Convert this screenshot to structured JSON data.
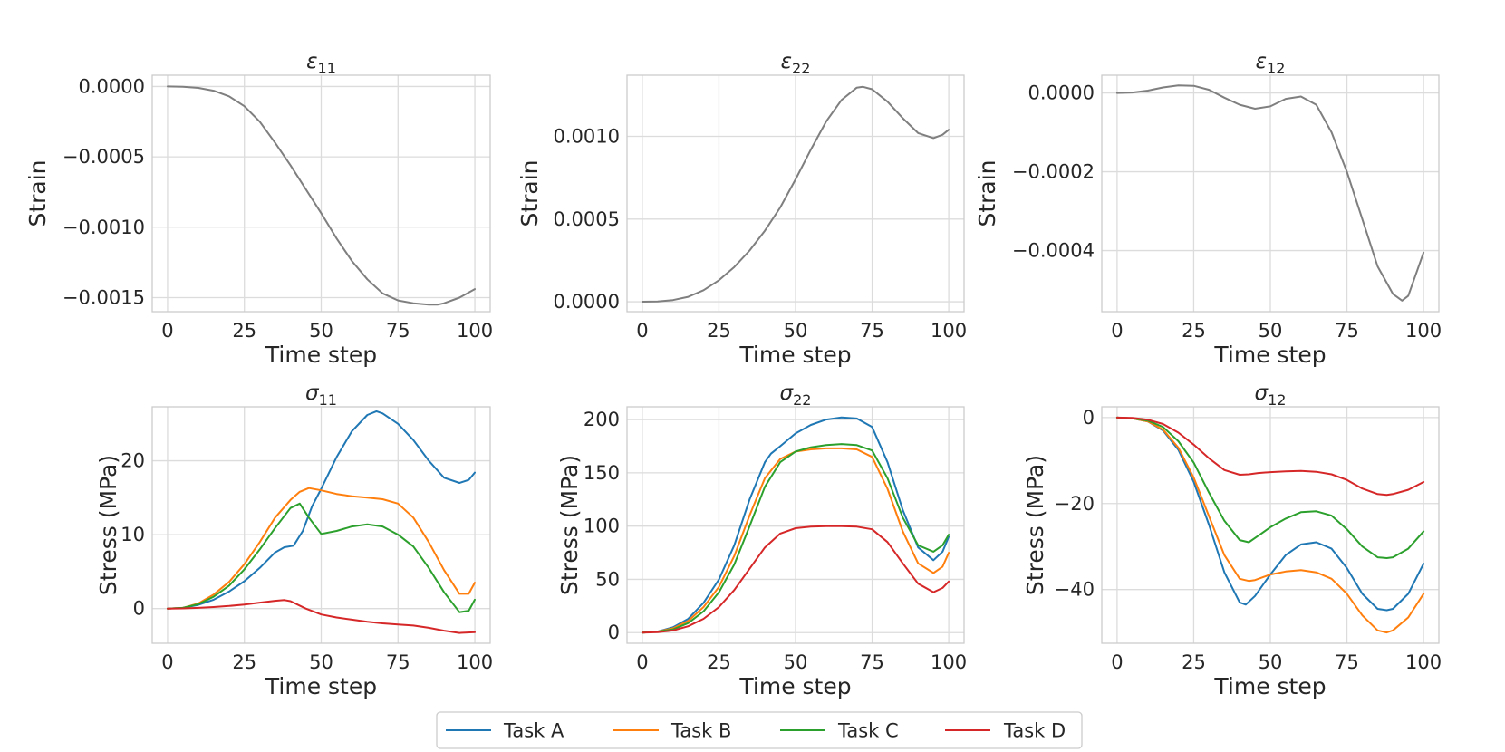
{
  "chart_data": [
    {
      "type": "line",
      "title": "ε11",
      "title_symbol": "ε",
      "title_sub": "11",
      "xlabel": "Time step",
      "ylabel": "Strain",
      "xlim": [
        -5,
        105
      ],
      "ylim": [
        -0.0016,
        8e-05
      ],
      "xticks": [
        0,
        25,
        50,
        75,
        100
      ],
      "xtick_labels": [
        "0",
        "25",
        "50",
        "75",
        "100"
      ],
      "yticks": [
        0,
        -0.0005,
        -0.001,
        -0.0015
      ],
      "ytick_labels": [
        "0.0000",
        "−0.0005",
        "−0.0010",
        "−0.0015"
      ],
      "grid": true,
      "series": [
        {
          "name": "ε11",
          "color": "#7f7f7f",
          "x": [
            0,
            5,
            10,
            15,
            20,
            25,
            30,
            35,
            40,
            45,
            50,
            55,
            60,
            65,
            70,
            75,
            80,
            85,
            88,
            90,
            95,
            100
          ],
          "y": [
            0,
            -2e-06,
            -1e-05,
            -3e-05,
            -7e-05,
            -0.00014,
            -0.00025,
            -0.0004,
            -0.00056,
            -0.00073,
            -0.0009,
            -0.00108,
            -0.00124,
            -0.00137,
            -0.00147,
            -0.00152,
            -0.00154,
            -0.00155,
            -0.00155,
            -0.00154,
            -0.0015,
            -0.00144
          ]
        }
      ]
    },
    {
      "type": "line",
      "title": "ε22",
      "title_symbol": "ε",
      "title_sub": "22",
      "xlabel": "Time step",
      "ylabel": "Strain",
      "xlim": [
        -5,
        105
      ],
      "ylim": [
        -6e-05,
        0.00137
      ],
      "xticks": [
        0,
        25,
        50,
        75,
        100
      ],
      "xtick_labels": [
        "0",
        "25",
        "50",
        "75",
        "100"
      ],
      "yticks": [
        0,
        0.0005,
        0.001
      ],
      "ytick_labels": [
        "0.0000",
        "0.0005",
        "0.0010"
      ],
      "grid": true,
      "series": [
        {
          "name": "ε22",
          "color": "#7f7f7f",
          "x": [
            0,
            5,
            10,
            15,
            20,
            25,
            30,
            35,
            40,
            45,
            50,
            55,
            60,
            65,
            70,
            72,
            75,
            80,
            85,
            90,
            95,
            98,
            100
          ],
          "y": [
            0,
            2e-06,
            1e-05,
            3e-05,
            7e-05,
            0.00013,
            0.00021,
            0.00031,
            0.00043,
            0.00057,
            0.00074,
            0.00092,
            0.00109,
            0.00122,
            0.001295,
            0.0013,
            0.001285,
            0.00121,
            0.00111,
            0.00102,
            0.00099,
            0.00101,
            0.00104
          ]
        }
      ]
    },
    {
      "type": "line",
      "title": "ε12",
      "title_symbol": "ε",
      "title_sub": "12",
      "xlabel": "Time step",
      "ylabel": "Strain",
      "xlim": [
        -5,
        105
      ],
      "ylim": [
        -0.000555,
        4.5e-05
      ],
      "xticks": [
        0,
        25,
        50,
        75,
        100
      ],
      "xtick_labels": [
        "0",
        "25",
        "50",
        "75",
        "100"
      ],
      "yticks": [
        0,
        -0.0002,
        -0.0004
      ],
      "ytick_labels": [
        "0.0000",
        "−0.0002",
        "−0.0004"
      ],
      "grid": true,
      "series": [
        {
          "name": "ε12",
          "color": "#7f7f7f",
          "x": [
            0,
            5,
            10,
            15,
            20,
            25,
            30,
            35,
            40,
            45,
            50,
            55,
            60,
            65,
            70,
            75,
            80,
            85,
            90,
            93,
            95,
            100
          ],
          "y": [
            0,
            1e-06,
            6e-06,
            1.4e-05,
            1.9e-05,
            1.8e-05,
            8e-06,
            -1.2e-05,
            -3e-05,
            -4e-05,
            -3.4e-05,
            -1.5e-05,
            -9e-06,
            -3e-05,
            -0.0001,
            -0.0002,
            -0.00032,
            -0.00044,
            -0.00051,
            -0.000527,
            -0.000515,
            -0.000405
          ]
        }
      ]
    },
    {
      "type": "line",
      "title": "σ11",
      "title_symbol": "σ",
      "title_sub": "11",
      "xlabel": "Time step",
      "ylabel": "Stress (MPa)",
      "xlim": [
        -5,
        105
      ],
      "ylim": [
        -4.7,
        27.3
      ],
      "xticks": [
        0,
        25,
        50,
        75,
        100
      ],
      "xtick_labels": [
        "0",
        "25",
        "50",
        "75",
        "100"
      ],
      "yticks": [
        0,
        10,
        20
      ],
      "ytick_labels": [
        "0",
        "10",
        "20"
      ],
      "grid": true,
      "series": [
        {
          "name": "Task A",
          "color": "#1f77b4",
          "x": [
            0,
            5,
            10,
            15,
            20,
            25,
            30,
            35,
            38,
            41,
            44,
            47,
            50,
            55,
            60,
            65,
            68,
            70,
            75,
            80,
            85,
            90,
            95,
            98,
            100
          ],
          "y": [
            0,
            0.1,
            0.5,
            1.2,
            2.3,
            3.7,
            5.5,
            7.6,
            8.3,
            8.5,
            10.5,
            13.8,
            16.2,
            20.5,
            24,
            26.2,
            26.7,
            26.4,
            25,
            22.8,
            20,
            17.7,
            17,
            17.4,
            18.4
          ]
        },
        {
          "name": "Task B",
          "color": "#ff7f0e",
          "x": [
            0,
            5,
            10,
            15,
            20,
            25,
            30,
            35,
            40,
            43,
            46,
            50,
            55,
            60,
            65,
            70,
            75,
            80,
            85,
            90,
            95,
            98,
            100
          ],
          "y": [
            0,
            0.1,
            0.7,
            1.9,
            3.6,
            6,
            9,
            12.3,
            14.7,
            15.8,
            16.3,
            16,
            15.5,
            15.2,
            15,
            14.8,
            14.2,
            12.3,
            9,
            5.2,
            2,
            2,
            3.5
          ]
        },
        {
          "name": "Task C",
          "color": "#2ca02c",
          "x": [
            0,
            5,
            10,
            15,
            20,
            25,
            30,
            35,
            40,
            43,
            46,
            50,
            55,
            60,
            65,
            70,
            75,
            80,
            85,
            90,
            95,
            98,
            100
          ],
          "y": [
            0,
            0.1,
            0.6,
            1.6,
            3.1,
            5.3,
            8,
            10.9,
            13.6,
            14.2,
            12.3,
            10.1,
            10.5,
            11.1,
            11.4,
            11.1,
            10,
            8.4,
            5.5,
            2.2,
            -0.5,
            -0.3,
            1.2
          ]
        },
        {
          "name": "Task D",
          "color": "#d62728",
          "x": [
            0,
            5,
            10,
            15,
            20,
            25,
            30,
            35,
            38,
            40,
            45,
            50,
            55,
            60,
            65,
            70,
            75,
            80,
            85,
            90,
            95,
            100
          ],
          "y": [
            0,
            0.02,
            0.1,
            0.2,
            0.35,
            0.55,
            0.8,
            1.05,
            1.15,
            1,
            0,
            -0.8,
            -1.2,
            -1.5,
            -1.8,
            -2,
            -2.15,
            -2.3,
            -2.6,
            -3,
            -3.3,
            -3.2
          ]
        }
      ]
    },
    {
      "type": "line",
      "title": "σ22",
      "title_symbol": "σ",
      "title_sub": "22",
      "xlabel": "Time step",
      "ylabel": "Stress (MPa)",
      "xlim": [
        -5,
        105
      ],
      "ylim": [
        -10,
        212
      ],
      "xticks": [
        0,
        25,
        50,
        75,
        100
      ],
      "xtick_labels": [
        "0",
        "25",
        "50",
        "75",
        "100"
      ],
      "yticks": [
        0,
        50,
        100,
        150,
        200
      ],
      "ytick_labels": [
        "0",
        "50",
        "100",
        "150",
        "200"
      ],
      "grid": true,
      "series": [
        {
          "name": "Task A",
          "color": "#1f77b4",
          "x": [
            0,
            5,
            10,
            15,
            20,
            25,
            30,
            35,
            40,
            42,
            45,
            50,
            55,
            60,
            65,
            70,
            75,
            80,
            85,
            90,
            95,
            98,
            100
          ],
          "y": [
            0,
            1,
            5,
            13,
            28,
            50,
            82,
            125,
            160,
            168,
            175,
            187,
            195,
            200,
            202,
            201,
            193,
            160,
            115,
            80,
            68,
            76,
            90
          ]
        },
        {
          "name": "Task B",
          "color": "#ff7f0e",
          "x": [
            0,
            5,
            10,
            15,
            20,
            25,
            30,
            35,
            40,
            45,
            50,
            55,
            60,
            65,
            70,
            75,
            80,
            85,
            90,
            95,
            98,
            100
          ],
          "y": [
            0,
            1,
            4,
            11,
            24,
            43,
            72,
            110,
            145,
            163,
            170,
            172,
            173,
            173,
            172,
            165,
            135,
            95,
            65,
            56,
            62,
            75
          ]
        },
        {
          "name": "Task C",
          "color": "#2ca02c",
          "x": [
            0,
            5,
            10,
            15,
            20,
            25,
            30,
            35,
            40,
            45,
            50,
            55,
            60,
            65,
            70,
            75,
            80,
            85,
            90,
            95,
            98,
            100
          ],
          "y": [
            0,
            1,
            3,
            9,
            20,
            38,
            64,
            100,
            137,
            160,
            170,
            174,
            176,
            177,
            176,
            171,
            145,
            108,
            82,
            76,
            82,
            92
          ]
        },
        {
          "name": "Task D",
          "color": "#d62728",
          "x": [
            0,
            5,
            10,
            15,
            20,
            25,
            30,
            35,
            40,
            45,
            50,
            55,
            60,
            65,
            70,
            75,
            80,
            85,
            90,
            95,
            98,
            100
          ],
          "y": [
            0,
            0.5,
            2,
            6,
            13,
            24,
            40,
            60,
            80,
            93,
            98,
            99.5,
            100,
            100,
            99.5,
            97,
            85,
            65,
            46,
            38,
            42,
            48
          ]
        }
      ]
    },
    {
      "type": "line",
      "title": "σ12",
      "title_symbol": "σ",
      "title_sub": "12",
      "xlabel": "Time step",
      "ylabel": "Stress (MPa)",
      "xlim": [
        -5,
        105
      ],
      "ylim": [
        -52.5,
        2.5
      ],
      "xticks": [
        0,
        25,
        50,
        75,
        100
      ],
      "xtick_labels": [
        "0",
        "25",
        "50",
        "75",
        "100"
      ],
      "yticks": [
        0,
        -20,
        -40
      ],
      "ytick_labels": [
        "0",
        "−20",
        "−40"
      ],
      "grid": true,
      "series": [
        {
          "name": "Task A",
          "color": "#1f77b4",
          "x": [
            0,
            5,
            10,
            15,
            20,
            25,
            30,
            35,
            40,
            42,
            45,
            50,
            55,
            60,
            65,
            70,
            75,
            80,
            85,
            88,
            90,
            95,
            100
          ],
          "y": [
            0,
            -0.2,
            -0.9,
            -3,
            -7.5,
            -15,
            -25,
            -36,
            -43,
            -43.5,
            -41.5,
            -36.5,
            -32,
            -29.5,
            -29,
            -30.5,
            -35,
            -41,
            -44.5,
            -44.8,
            -44.5,
            -41,
            -34
          ]
        },
        {
          "name": "Task B",
          "color": "#ff7f0e",
          "x": [
            0,
            5,
            10,
            15,
            20,
            25,
            30,
            35,
            40,
            43,
            45,
            50,
            55,
            60,
            65,
            70,
            75,
            80,
            85,
            88,
            90,
            95,
            100
          ],
          "y": [
            0,
            -0.2,
            -0.9,
            -2.8,
            -7,
            -14,
            -23,
            -32,
            -37.5,
            -38,
            -37.8,
            -36.5,
            -35.8,
            -35.5,
            -36,
            -37.5,
            -41,
            -46,
            -49.5,
            -50,
            -49.5,
            -46.5,
            -41
          ]
        },
        {
          "name": "Task C",
          "color": "#2ca02c",
          "x": [
            0,
            5,
            10,
            15,
            20,
            25,
            30,
            35,
            40,
            43,
            46,
            50,
            55,
            60,
            65,
            70,
            75,
            80,
            85,
            88,
            90,
            95,
            100
          ],
          "y": [
            0,
            -0.15,
            -0.7,
            -2.2,
            -5.5,
            -10.5,
            -17.5,
            -24,
            -28.5,
            -29,
            -27.5,
            -25.5,
            -23.5,
            -22,
            -21.8,
            -22.8,
            -26,
            -30,
            -32.5,
            -32.7,
            -32.5,
            -30.5,
            -26.5
          ]
        },
        {
          "name": "Task D",
          "color": "#d62728",
          "x": [
            0,
            5,
            10,
            15,
            20,
            25,
            30,
            35,
            40,
            43,
            46,
            50,
            55,
            60,
            65,
            70,
            75,
            80,
            85,
            88,
            90,
            95,
            100
          ],
          "y": [
            0,
            -0.1,
            -0.5,
            -1.5,
            -3.5,
            -6.3,
            -9.5,
            -12.2,
            -13.3,
            -13.2,
            -12.9,
            -12.7,
            -12.5,
            -12.4,
            -12.6,
            -13.2,
            -14.5,
            -16.5,
            -17.8,
            -18,
            -17.8,
            -16.8,
            -15
          ]
        }
      ]
    }
  ],
  "legend": {
    "entries": [
      {
        "label": "Task A",
        "color": "#1f77b4"
      },
      {
        "label": "Task B",
        "color": "#ff7f0e"
      },
      {
        "label": "Task C",
        "color": "#2ca02c"
      },
      {
        "label": "Task D",
        "color": "#d62728"
      }
    ],
    "placement": "bottom-center"
  }
}
